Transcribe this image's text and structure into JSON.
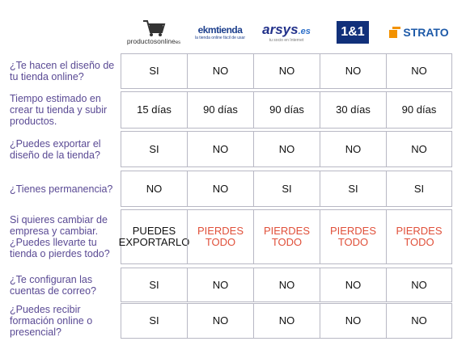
{
  "header": {
    "logos": [
      {
        "text": "productosonline",
        "suffix": "es"
      },
      {
        "text": "ekmtienda",
        "tagline": "la tienda online fácil de usar"
      },
      {
        "text": "arsys",
        "suffix": ".es",
        "tagline": "tu socio en Internet"
      },
      {
        "text": "1&1"
      },
      {
        "text": "STRATO"
      }
    ]
  },
  "table": {
    "rows": [
      {
        "question": "¿Te hacen el diseño de tu tienda online?",
        "answers": [
          "SI",
          "NO",
          "NO",
          "NO",
          "NO"
        ]
      },
      {
        "question": "Tiempo estimado en crear tu tienda y subir productos.",
        "answers": [
          "15 días",
          "90 días",
          "90 días",
          "30 días",
          "90 días"
        ]
      },
      {
        "question": "¿Puedes exportar el diseño de la tienda?",
        "answers": [
          "SI",
          "NO",
          "NO",
          "NO",
          "NO"
        ]
      },
      {
        "question": "¿Tienes permanencia?",
        "answers": [
          "NO",
          "NO",
          "SI",
          "SI",
          "SI"
        ]
      },
      {
        "question": "Si quieres cambiar de empresa y cambiar. ¿Puedes llevarte tu tienda o pierdes todo?",
        "answers": [
          "PUEDES EXPORTARLO",
          "PIERDES TODO",
          "PIERDES TODO",
          "PIERDES TODO",
          "PIERDES TODO"
        ],
        "colors": [
          "#111111",
          "#e0503a",
          "#e0503a",
          "#e0503a",
          "#e0503a"
        ]
      },
      {
        "question": "¿Te configuran las cuentas de correo?",
        "answers": [
          "SI",
          "NO",
          "NO",
          "NO",
          "NO"
        ]
      },
      {
        "question": "¿Puedes recibir formación online o presencial?",
        "answers": [
          "SI",
          "NO",
          "NO",
          "NO",
          "NO"
        ]
      }
    ]
  }
}
